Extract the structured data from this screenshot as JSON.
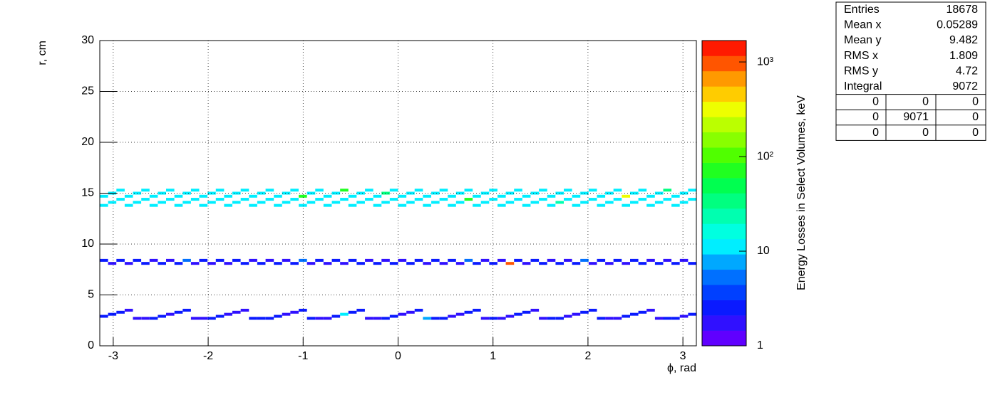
{
  "chart_data": {
    "type": "heatmap",
    "x_label": "ϕ, rad",
    "y_label": "r, cm",
    "z_label": "Energy Losses in Select Volumes, keV",
    "xlim": [
      -3.1416,
      3.1416
    ],
    "ylim": [
      0,
      30
    ],
    "zlim": [
      1,
      1683
    ],
    "xticks": [
      -3,
      -2,
      -1,
      0,
      1,
      2,
      3
    ],
    "yticks": [
      0,
      5,
      10,
      15,
      20,
      25,
      30
    ],
    "zticks": [
      1,
      10,
      {
        "value": 100,
        "label": "10²"
      },
      {
        "value": 1000,
        "label": "10³"
      }
    ],
    "z_log": true,
    "grid": true,
    "palette": [
      "#6000ff",
      "#3010ff",
      "#0a1aff",
      "#0040ff",
      "#0070ff",
      "#00a8ff",
      "#00eeff",
      "#00ffe0",
      "#00ffb0",
      "#00ff80",
      "#00ff50",
      "#20ff20",
      "#50ff00",
      "#88ff00",
      "#bbff00",
      "#eeff00",
      "#ffcc00",
      "#ff9900",
      "#ff5500",
      "#ff1a00"
    ],
    "x": [
      -3.098,
      -3.011,
      -2.923,
      -2.836,
      -2.749,
      -2.661,
      -2.574,
      -2.487,
      -2.4,
      -2.312,
      -2.225,
      -2.138,
      -2.051,
      -1.963,
      -1.876,
      -1.789,
      -1.702,
      -1.614,
      -1.527,
      -1.44,
      -1.352,
      -1.265,
      -1.178,
      -1.091,
      -1.003,
      -0.916,
      -0.829,
      -0.742,
      -0.654,
      -0.567,
      -0.48,
      -0.393,
      -0.305,
      -0.218,
      -0.131,
      -0.044,
      0.044,
      0.131,
      0.218,
      0.305,
      0.393,
      0.48,
      0.567,
      0.654,
      0.742,
      0.829,
      0.916,
      1.003,
      1.091,
      1.178,
      1.265,
      1.352,
      1.44,
      1.527,
      1.614,
      1.702,
      1.789,
      1.876,
      1.963,
      2.051,
      2.138,
      2.225,
      2.312,
      2.4,
      2.487,
      2.574,
      2.661,
      2.749,
      2.836,
      2.923,
      3.011,
      3.098
    ],
    "tracks": [
      {
        "r": [
          2.9,
          3.1,
          3.3,
          3.5,
          2.7,
          2.7,
          2.7,
          2.9,
          3.1,
          3.3,
          3.5,
          2.7,
          2.7,
          2.7,
          2.9,
          3.1,
          3.3,
          3.5,
          2.7,
          2.7,
          2.7,
          2.9,
          3.1,
          3.3,
          3.5,
          2.7,
          2.7,
          2.7,
          2.9,
          3.1,
          3.3,
          3.5,
          2.7,
          2.7,
          2.7,
          2.9,
          3.1,
          3.3,
          3.5,
          2.7,
          2.7,
          2.7,
          2.9,
          3.1,
          3.3,
          3.5,
          2.7,
          2.7,
          2.7,
          2.9,
          3.1,
          3.3,
          3.5,
          2.7,
          2.7,
          2.7,
          2.9,
          3.1,
          3.3,
          3.5,
          2.7,
          2.7,
          2.7,
          2.9,
          3.1,
          3.3,
          3.5,
          2.7,
          2.7,
          2.7,
          2.9,
          3.1
        ],
        "values": [
          3,
          3,
          3,
          2,
          2,
          2,
          3,
          3,
          2,
          3,
          3,
          2,
          2,
          3,
          3,
          2,
          2,
          2,
          3,
          3,
          3,
          3,
          2,
          2,
          3,
          3,
          2,
          2,
          3,
          10,
          3,
          3,
          2,
          2,
          3,
          3,
          2,
          2,
          3,
          8,
          3,
          3,
          2,
          2,
          3,
          3,
          2,
          3,
          2,
          2,
          3,
          3,
          2,
          2,
          3,
          3,
          2,
          2,
          3,
          3,
          3,
          2,
          2,
          3,
          3,
          3,
          2,
          2,
          3,
          3,
          2,
          3
        ]
      },
      {
        "r": [
          8.4,
          8.1,
          8.4,
          8.1,
          8.4,
          8.1,
          8.4,
          8.1,
          8.4,
          8.1,
          8.4,
          8.1,
          8.4,
          8.1,
          8.4,
          8.1,
          8.4,
          8.1,
          8.4,
          8.1,
          8.4,
          8.1,
          8.4,
          8.1,
          8.4,
          8.1,
          8.4,
          8.1,
          8.4,
          8.1,
          8.4,
          8.1,
          8.4,
          8.1,
          8.4,
          8.1,
          8.4,
          8.1,
          8.4,
          8.1,
          8.4,
          8.1,
          8.4,
          8.1,
          8.4,
          8.1,
          8.4,
          8.1,
          8.4,
          8.1,
          8.4,
          8.1,
          8.4,
          8.1,
          8.4,
          8.1,
          8.4,
          8.1,
          8.4,
          8.1,
          8.4,
          8.1,
          8.4,
          8.1,
          8.4,
          8.1,
          8.4,
          8.1,
          8.4,
          8.1,
          8.4,
          8.1
        ],
        "values": [
          3,
          2,
          3,
          2,
          3,
          3,
          2,
          3,
          2,
          3,
          6,
          2,
          3,
          2,
          3,
          2,
          3,
          3,
          2,
          3,
          2,
          3,
          2,
          3,
          6,
          2,
          3,
          2,
          3,
          2,
          3,
          3,
          2,
          3,
          2,
          3,
          2,
          3,
          3,
          2,
          3,
          2,
          3,
          2,
          6,
          3,
          2,
          3,
          2,
          900,
          3,
          2,
          3,
          3,
          2,
          3,
          2,
          3,
          6,
          2,
          3,
          2,
          3,
          2,
          3,
          3,
          2,
          3,
          2,
          3,
          2,
          3
        ]
      },
      {
        "r": [
          13.8,
          14.1,
          14.4,
          13.8,
          14.1,
          14.4,
          13.8,
          14.1,
          14.4,
          13.8,
          14.1,
          14.4,
          13.8,
          14.1,
          14.4,
          13.8,
          14.1,
          14.4,
          13.8,
          14.1,
          14.4,
          13.8,
          14.1,
          14.4,
          13.8,
          14.1,
          14.4,
          13.8,
          14.1,
          14.4,
          13.8,
          14.1,
          14.4,
          13.8,
          14.1,
          14.4,
          13.8,
          14.1,
          14.4,
          13.8,
          14.1,
          14.4,
          13.8,
          14.1,
          14.4,
          13.8,
          14.1,
          14.4,
          13.8,
          14.1,
          14.4,
          13.8,
          14.1,
          14.4,
          13.8,
          14.1,
          14.4,
          13.8,
          14.1,
          14.4,
          13.8,
          14.1,
          14.4,
          13.8,
          14.1,
          14.4,
          13.8,
          14.1,
          14.4,
          13.8,
          14.1,
          14.4
        ],
        "values": [
          12,
          11,
          13,
          12,
          11,
          12,
          13,
          11,
          12,
          12,
          11,
          13,
          12,
          12,
          11,
          12,
          13,
          12,
          11,
          12,
          12,
          11,
          13,
          12,
          12,
          11,
          12,
          13,
          12,
          11,
          12,
          12,
          11,
          13,
          12,
          12,
          11,
          12,
          13,
          12,
          11,
          12,
          12,
          13,
          70,
          11,
          12,
          12,
          13,
          11,
          12,
          12,
          11,
          13,
          12,
          25,
          11,
          12,
          12,
          13,
          11,
          12,
          12,
          13,
          11,
          12,
          12,
          11,
          13,
          12,
          12,
          11
        ]
      },
      {
        "r": [
          14.7,
          15.0,
          15.3,
          14.7,
          15.0,
          15.3,
          14.7,
          15.0,
          15.3,
          14.7,
          15.0,
          15.3,
          14.7,
          15.0,
          15.3,
          14.7,
          15.0,
          15.3,
          14.7,
          15.0,
          15.3,
          14.7,
          15.0,
          15.3,
          14.7,
          15.0,
          15.3,
          14.7,
          15.0,
          15.3,
          14.7,
          15.0,
          15.3,
          14.7,
          15.0,
          15.3,
          14.7,
          15.0,
          15.3,
          14.7,
          15.0,
          15.3,
          14.7,
          15.0,
          15.3,
          14.7,
          15.0,
          15.3,
          14.7,
          15.0,
          15.3,
          14.7,
          15.0,
          15.3,
          14.7,
          15.0,
          15.3,
          14.7,
          15.0,
          15.3,
          14.7,
          15.0,
          15.3,
          14.7,
          15.0,
          15.3,
          14.7,
          15.0,
          15.3,
          14.7,
          15.0,
          15.3
        ],
        "values": [
          13,
          12,
          11,
          12,
          13,
          12,
          11,
          12,
          12,
          13,
          12,
          11,
          12,
          13,
          12,
          11,
          12,
          13,
          12,
          12,
          11,
          12,
          12,
          12,
          80,
          13,
          12,
          12,
          11,
          60,
          12,
          13,
          12,
          11,
          40,
          12,
          13,
          12,
          11,
          12,
          12,
          13,
          11,
          12,
          12,
          13,
          12,
          11,
          12,
          12,
          13,
          12,
          11,
          12,
          12,
          13,
          12,
          11,
          12,
          12,
          13,
          12,
          11,
          300,
          12,
          12,
          13,
          12,
          40,
          12,
          11,
          12
        ]
      }
    ]
  },
  "stats": {
    "rows": [
      [
        "Entries",
        18678
      ],
      [
        "Mean x",
        0.05289
      ],
      [
        "Mean y",
        9.482
      ],
      [
        "RMS x",
        1.809
      ],
      [
        "RMS y",
        4.72
      ],
      [
        "Integral",
        9072
      ]
    ],
    "table": [
      [
        0,
        0,
        0
      ],
      [
        0,
        9071,
        0
      ],
      [
        0,
        0,
        0
      ]
    ]
  }
}
